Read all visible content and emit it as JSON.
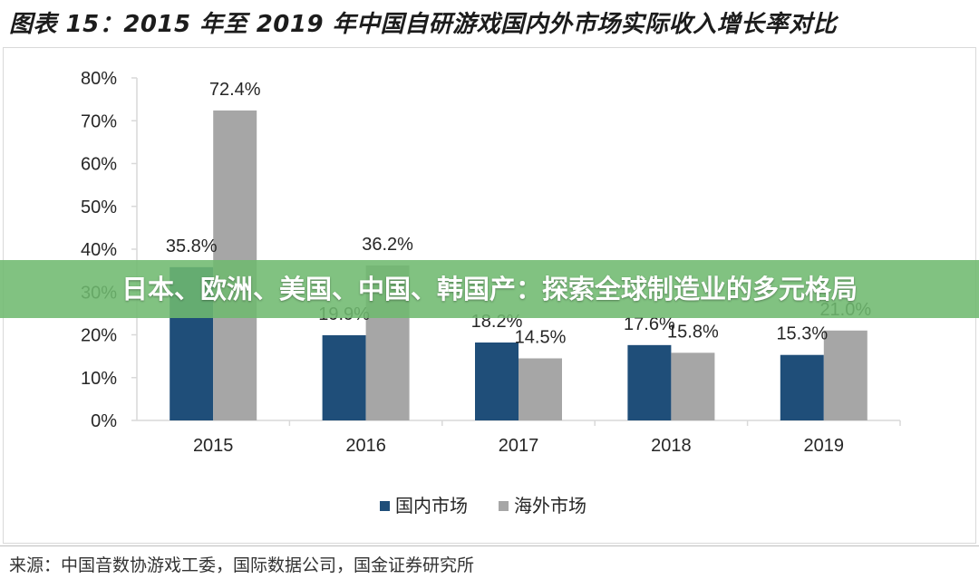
{
  "title": "图表 15：2015 年至 2019 年中国自研游戏国内外市场实际收入增长率对比",
  "banner": "日本、欧洲、美国、中国、韩国产：探索全球制造业的多元格局",
  "source": "来源：中国音数协游戏工委，国际数据公司，国金证券研究所",
  "colors": {
    "domestic": "#1f4e79",
    "overseas": "#a6a6a6",
    "axis": "#d9d9d9",
    "text": "#262626"
  },
  "chart_data": {
    "type": "bar",
    "categories": [
      "2015",
      "2016",
      "2017",
      "2018",
      "2019"
    ],
    "series": [
      {
        "name": "国内市场",
        "values": [
          35.8,
          19.9,
          18.2,
          17.6,
          15.3
        ],
        "labels": [
          "35.8%",
          "19.9%",
          "18.2%",
          "17.6%",
          "15.3%"
        ]
      },
      {
        "name": "海外市场",
        "values": [
          72.4,
          36.2,
          14.5,
          15.8,
          21.0
        ],
        "labels": [
          "72.4%",
          "36.2%",
          "14.5%",
          "15.8%",
          "21.0%"
        ]
      }
    ],
    "yticks": [
      "0%",
      "10%",
      "20%",
      "30%",
      "40%",
      "50%",
      "60%",
      "70%",
      "80%"
    ],
    "ylim": [
      0,
      80
    ],
    "grid": false,
    "legend": "bottom-center"
  }
}
